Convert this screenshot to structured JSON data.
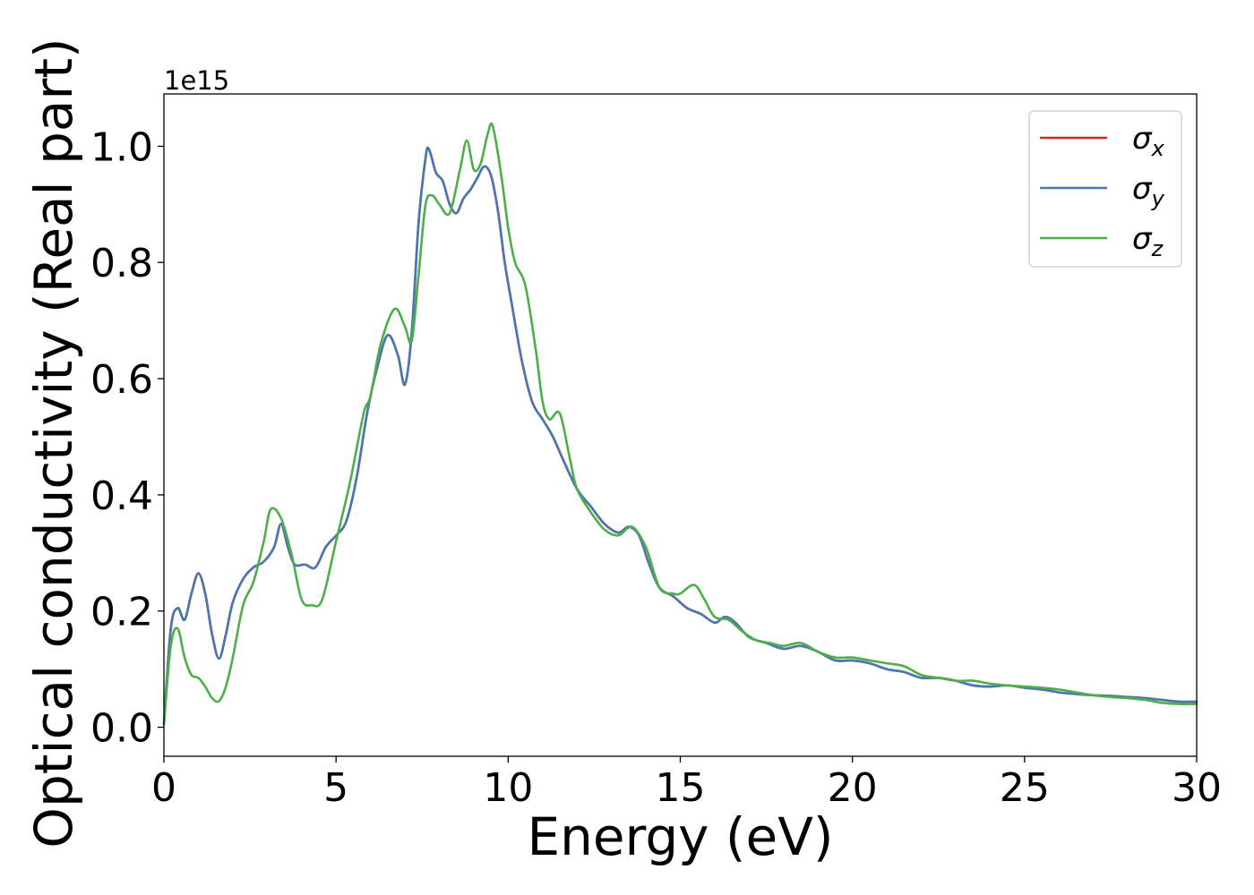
{
  "chart_data": {
    "type": "line",
    "xlabel": "Energy (eV)",
    "ylabel": "Optical conductivity (Real part)",
    "y_offset_text": "1e15",
    "xlim": [
      0,
      30
    ],
    "ylim": [
      -0.05,
      1.09
    ],
    "xticks": [
      0,
      5,
      10,
      15,
      20,
      25,
      30
    ],
    "xtick_labels": [
      "0",
      "5",
      "10",
      "15",
      "20",
      "25",
      "30"
    ],
    "yticks": [
      0.0,
      0.2,
      0.4,
      0.6,
      0.8,
      1.0
    ],
    "ytick_labels": [
      "0.0",
      "0.2",
      "0.4",
      "0.6",
      "0.8",
      "1.0"
    ],
    "grid": false,
    "legend_position": "top-right",
    "series": [
      {
        "name": "σx",
        "symbol": "σ",
        "subscript": "x",
        "color": "#d62728",
        "x": [
          0,
          0.2,
          0.4,
          0.6,
          0.8,
          1.0,
          1.2,
          1.4,
          1.6,
          1.8,
          2.0,
          2.3,
          2.6,
          2.9,
          3.2,
          3.4,
          3.6,
          3.8,
          4.1,
          4.4,
          4.7,
          5.0,
          5.3,
          5.6,
          5.9,
          6.2,
          6.5,
          6.8,
          7.0,
          7.2,
          7.4,
          7.6,
          7.7,
          7.9,
          8.1,
          8.3,
          8.5,
          8.7,
          8.9,
          9.1,
          9.3,
          9.5,
          9.7,
          9.9,
          10.1,
          10.4,
          10.7,
          11.0,
          11.3,
          11.6,
          12.0,
          12.4,
          12.8,
          13.2,
          13.5,
          13.8,
          14.1,
          14.4,
          14.8,
          15.2,
          15.6,
          16.0,
          16.3,
          16.6,
          17.0,
          17.5,
          18.0,
          18.5,
          19.0,
          19.5,
          20.0,
          20.5,
          21.0,
          21.5,
          22.0,
          22.5,
          23.0,
          23.5,
          24.0,
          24.5,
          25.0,
          25.5,
          26.0,
          26.5,
          27.0,
          27.5,
          28.0,
          28.5,
          29.0,
          29.5,
          30.0
        ],
        "y": [
          0.005,
          0.17,
          0.205,
          0.185,
          0.23,
          0.265,
          0.23,
          0.16,
          0.118,
          0.16,
          0.215,
          0.255,
          0.275,
          0.285,
          0.31,
          0.35,
          0.31,
          0.28,
          0.28,
          0.275,
          0.31,
          0.33,
          0.355,
          0.43,
          0.54,
          0.62,
          0.675,
          0.64,
          0.59,
          0.68,
          0.87,
          0.98,
          0.995,
          0.955,
          0.94,
          0.9,
          0.885,
          0.91,
          0.925,
          0.945,
          0.965,
          0.95,
          0.89,
          0.8,
          0.73,
          0.63,
          0.56,
          0.53,
          0.5,
          0.46,
          0.41,
          0.38,
          0.35,
          0.335,
          0.345,
          0.33,
          0.28,
          0.24,
          0.225,
          0.205,
          0.195,
          0.18,
          0.19,
          0.18,
          0.155,
          0.145,
          0.135,
          0.14,
          0.13,
          0.115,
          0.115,
          0.11,
          0.1,
          0.095,
          0.085,
          0.085,
          0.08,
          0.072,
          0.07,
          0.072,
          0.068,
          0.065,
          0.06,
          0.057,
          0.055,
          0.054,
          0.052,
          0.05,
          0.047,
          0.044,
          0.044
        ]
      },
      {
        "name": "σy",
        "symbol": "σ",
        "subscript": "y",
        "color": "#4878b0",
        "x": [
          0,
          0.2,
          0.4,
          0.6,
          0.8,
          1.0,
          1.2,
          1.4,
          1.6,
          1.8,
          2.0,
          2.3,
          2.6,
          2.9,
          3.2,
          3.4,
          3.6,
          3.8,
          4.1,
          4.4,
          4.7,
          5.0,
          5.3,
          5.6,
          5.9,
          6.2,
          6.5,
          6.8,
          7.0,
          7.2,
          7.4,
          7.6,
          7.7,
          7.9,
          8.1,
          8.3,
          8.5,
          8.7,
          8.9,
          9.1,
          9.3,
          9.5,
          9.7,
          9.9,
          10.1,
          10.4,
          10.7,
          11.0,
          11.3,
          11.6,
          12.0,
          12.4,
          12.8,
          13.2,
          13.5,
          13.8,
          14.1,
          14.4,
          14.8,
          15.2,
          15.6,
          16.0,
          16.3,
          16.6,
          17.0,
          17.5,
          18.0,
          18.5,
          19.0,
          19.5,
          20.0,
          20.5,
          21.0,
          21.5,
          22.0,
          22.5,
          23.0,
          23.5,
          24.0,
          24.5,
          25.0,
          25.5,
          26.0,
          26.5,
          27.0,
          27.5,
          28.0,
          28.5,
          29.0,
          29.5,
          30.0
        ],
        "y": [
          0.005,
          0.17,
          0.205,
          0.185,
          0.23,
          0.265,
          0.23,
          0.16,
          0.118,
          0.16,
          0.215,
          0.255,
          0.275,
          0.285,
          0.31,
          0.35,
          0.31,
          0.28,
          0.28,
          0.275,
          0.31,
          0.33,
          0.355,
          0.43,
          0.54,
          0.62,
          0.675,
          0.64,
          0.59,
          0.68,
          0.87,
          0.98,
          0.995,
          0.955,
          0.94,
          0.9,
          0.885,
          0.91,
          0.925,
          0.945,
          0.965,
          0.95,
          0.89,
          0.8,
          0.73,
          0.63,
          0.56,
          0.53,
          0.5,
          0.46,
          0.41,
          0.38,
          0.35,
          0.335,
          0.345,
          0.33,
          0.28,
          0.24,
          0.225,
          0.205,
          0.195,
          0.18,
          0.19,
          0.18,
          0.155,
          0.145,
          0.135,
          0.14,
          0.13,
          0.115,
          0.115,
          0.11,
          0.1,
          0.095,
          0.085,
          0.085,
          0.08,
          0.072,
          0.07,
          0.072,
          0.068,
          0.065,
          0.06,
          0.057,
          0.055,
          0.054,
          0.052,
          0.05,
          0.047,
          0.044,
          0.044
        ]
      },
      {
        "name": "σz",
        "symbol": "σ",
        "subscript": "z",
        "color": "#4daf4a",
        "x": [
          0,
          0.2,
          0.4,
          0.6,
          0.8,
          1.0,
          1.2,
          1.4,
          1.6,
          1.8,
          2.0,
          2.3,
          2.6,
          2.9,
          3.1,
          3.4,
          3.7,
          4.0,
          4.3,
          4.6,
          5.0,
          5.4,
          5.8,
          6.0,
          6.3,
          6.7,
          7.0,
          7.2,
          7.4,
          7.6,
          7.8,
          8.0,
          8.3,
          8.6,
          8.8,
          9.0,
          9.2,
          9.4,
          9.55,
          9.8,
          10.0,
          10.2,
          10.5,
          10.8,
          11.0,
          11.2,
          11.5,
          11.8,
          12.0,
          12.4,
          12.8,
          13.2,
          13.6,
          14.0,
          14.4,
          14.8,
          15.0,
          15.4,
          15.7,
          16.0,
          16.4,
          16.8,
          17.2,
          17.6,
          18.0,
          18.5,
          19.0,
          19.5,
          20.0,
          20.5,
          21.0,
          21.5,
          22.0,
          22.5,
          23.0,
          23.5,
          24.0,
          24.5,
          25.0,
          25.5,
          26.0,
          26.5,
          27.0,
          27.5,
          28.0,
          28.5,
          29.0,
          29.5,
          30.0
        ],
        "y": [
          0.005,
          0.14,
          0.17,
          0.12,
          0.09,
          0.085,
          0.07,
          0.05,
          0.045,
          0.07,
          0.12,
          0.21,
          0.25,
          0.32,
          0.375,
          0.36,
          0.3,
          0.22,
          0.21,
          0.22,
          0.32,
          0.42,
          0.54,
          0.57,
          0.66,
          0.72,
          0.69,
          0.665,
          0.78,
          0.9,
          0.915,
          0.9,
          0.885,
          0.96,
          1.01,
          0.96,
          0.97,
          1.02,
          1.035,
          0.95,
          0.86,
          0.8,
          0.76,
          0.65,
          0.56,
          0.53,
          0.54,
          0.46,
          0.41,
          0.37,
          0.34,
          0.33,
          0.345,
          0.31,
          0.24,
          0.23,
          0.23,
          0.245,
          0.22,
          0.19,
          0.185,
          0.165,
          0.15,
          0.145,
          0.14,
          0.145,
          0.13,
          0.12,
          0.12,
          0.115,
          0.11,
          0.105,
          0.09,
          0.085,
          0.08,
          0.08,
          0.075,
          0.072,
          0.07,
          0.068,
          0.065,
          0.06,
          0.055,
          0.052,
          0.05,
          0.047,
          0.042,
          0.04,
          0.04
        ]
      }
    ]
  }
}
